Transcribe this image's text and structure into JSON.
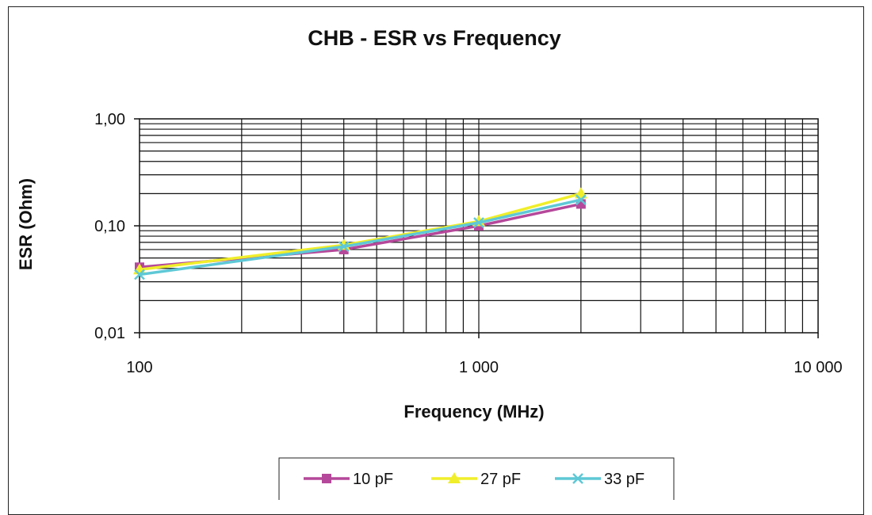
{
  "chart_data": {
    "type": "line",
    "title": "CHB - ESR vs Frequency",
    "xlabel": "Frequency (MHz)",
    "ylabel": "ESR (Ohm)",
    "x_scale": "log",
    "y_scale": "log",
    "xlim": [
      100,
      10000
    ],
    "ylim": [
      0.01,
      1.0
    ],
    "x_ticks": [
      {
        "value": 100,
        "label": "100"
      },
      {
        "value": 1000,
        "label": "1 000"
      },
      {
        "value": 10000,
        "label": "10 000"
      }
    ],
    "y_ticks": [
      {
        "value": 1.0,
        "label": "1,00"
      },
      {
        "value": 0.1,
        "label": "0,10"
      },
      {
        "value": 0.01,
        "label": "0,01"
      }
    ],
    "grid": true,
    "legend_position": "bottom",
    "series": [
      {
        "name": "10 pF",
        "color": "#b5489a",
        "marker": "square",
        "x": [
          100,
          400,
          1000,
          2000
        ],
        "y": [
          0.041,
          0.06,
          0.1,
          0.16
        ]
      },
      {
        "name": "27 pF",
        "color": "#f0ee2a",
        "marker": "triangle",
        "x": [
          100,
          400,
          1000,
          2000
        ],
        "y": [
          0.039,
          0.066,
          0.11,
          0.2
        ]
      },
      {
        "name": "33 pF",
        "color": "#5ec8d6",
        "marker": "x",
        "x": [
          100,
          400,
          1000,
          2000
        ],
        "y": [
          0.035,
          0.064,
          0.107,
          0.175
        ]
      }
    ]
  }
}
